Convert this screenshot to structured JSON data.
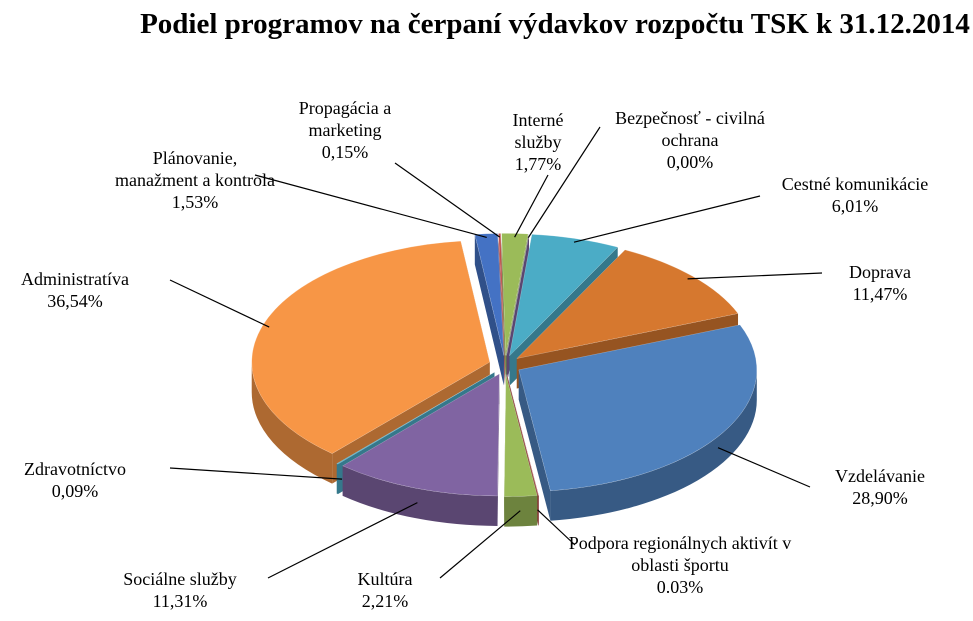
{
  "chart_data": {
    "type": "pie3d",
    "title": "Podiel programov na čerpaní výdavkov rozpočtu TSK k 31.12.2014",
    "categories": [
      "Plánovanie, manažment a kontrola",
      "Propagácia a marketing",
      "Interné služby",
      "Bezpečnosť - civilná ochrana",
      "Cestné komunikácie",
      "Doprava",
      "Vzdelávanie",
      "Podpora regionálnych aktivít v oblasti športu",
      "Kultúra",
      "Sociálne služby",
      "Zdravotníctvo",
      "Administratíva"
    ],
    "values": [
      1.53,
      0.15,
      1.77,
      0.0,
      6.01,
      11.47,
      28.9,
      0.03,
      2.21,
      11.31,
      0.09,
      36.54
    ],
    "value_labels": [
      "1,53%",
      "0,15%",
      "1,77%",
      "0,00%",
      "6,01%",
      "11,47%",
      "28,90%",
      "0.03%",
      "2,21%",
      "11,31%",
      "0,09%",
      "36,54%"
    ],
    "colors": [
      "#4472c4",
      "#c0504d",
      "#9bbb59",
      "#8064a2",
      "#4bacc6",
      "#d6782f",
      "#4f81bd",
      "#c0504d",
      "#9bbb59",
      "#8064a2",
      "#4bacc6",
      "#f79646"
    ]
  }
}
